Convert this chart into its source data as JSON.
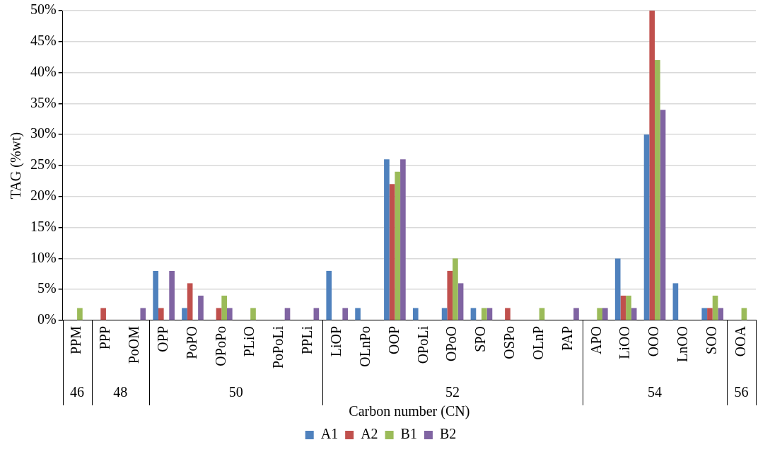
{
  "chart_data": {
    "type": "bar",
    "xlabel": "Carbon number (CN)",
    "ylabel": "TAG (%wt)",
    "categories": [
      "PPM",
      "PPP",
      "PoOM",
      "OPP",
      "PoPO",
      "OPoPo",
      "PLiO",
      "PoPoLi",
      "PPLi",
      "LiOP",
      "OLnPo",
      "OOP",
      "OPoLi",
      "OPoO",
      "SPO",
      "OSPo",
      "OLnP",
      "PAP",
      "APO",
      "LiOO",
      "OOO",
      "LnOO",
      "SOO",
      "OOA"
    ],
    "series": [
      {
        "name": "A1",
        "color": "#4f81bd",
        "values": [
          null,
          null,
          null,
          8,
          2,
          null,
          null,
          null,
          null,
          8,
          2,
          26,
          2,
          2,
          2,
          null,
          null,
          null,
          null,
          10,
          30,
          6,
          2,
          null
        ]
      },
      {
        "name": "A2",
        "color": "#c0504d",
        "values": [
          null,
          2,
          null,
          2,
          6,
          2,
          null,
          null,
          null,
          null,
          null,
          22,
          null,
          8,
          null,
          2,
          null,
          null,
          null,
          4,
          50,
          null,
          2,
          null
        ]
      },
      {
        "name": "B1",
        "color": "#9bbb59",
        "values": [
          2,
          null,
          null,
          null,
          null,
          4,
          2,
          null,
          null,
          null,
          null,
          24,
          null,
          10,
          2,
          null,
          2,
          null,
          2,
          4,
          42,
          null,
          4,
          2
        ]
      },
      {
        "name": "B2",
        "color": "#8064a2",
        "values": [
          null,
          null,
          2,
          8,
          4,
          2,
          null,
          2,
          2,
          2,
          null,
          26,
          null,
          6,
          2,
          null,
          null,
          2,
          2,
          2,
          34,
          null,
          2,
          null
        ]
      }
    ],
    "ylim": [
      0,
      50
    ],
    "yticks": [
      {
        "value": 0,
        "label": "0%"
      },
      {
        "value": 5,
        "label": "5%"
      },
      {
        "value": 10,
        "label": "10%"
      },
      {
        "value": 15,
        "label": "15%"
      },
      {
        "value": 20,
        "label": "20%"
      },
      {
        "value": 25,
        "label": "25%"
      },
      {
        "value": 30,
        "label": "30%"
      },
      {
        "value": 35,
        "label": "35%"
      },
      {
        "value": 40,
        "label": "40%"
      },
      {
        "value": 45,
        "label": "45%"
      },
      {
        "value": 50,
        "label": "50%"
      }
    ],
    "grid": "y",
    "legend": "bottom",
    "annotations": [
      "46",
      "48",
      "50",
      "52",
      "54",
      "56"
    ]
  }
}
